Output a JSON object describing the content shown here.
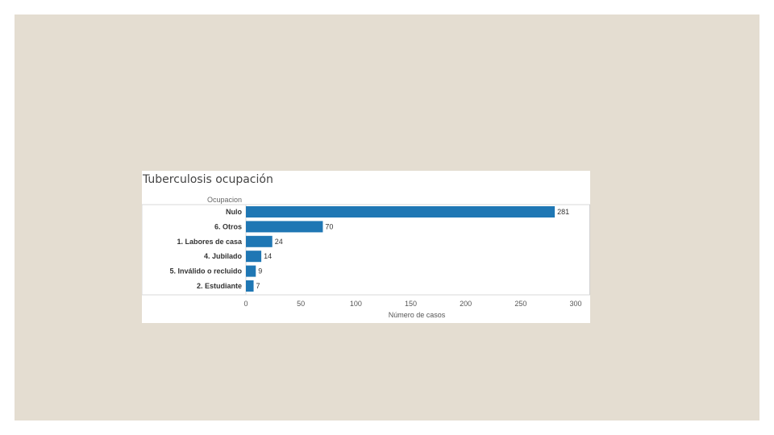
{
  "chart_data": {
    "type": "bar",
    "orientation": "horizontal",
    "title": "Tuberculosis ocupación",
    "row_header": "Ocupacion",
    "xlabel": "Número de casos",
    "ylabel": "",
    "categories": [
      "Nulo",
      "6. Otros",
      "1. Labores de casa",
      "4. Jubilado",
      "5. Inválido o recluido",
      "2. Estudiante"
    ],
    "values": [
      281,
      70,
      24,
      14,
      9,
      7
    ],
    "value_labels": [
      "281",
      "70",
      "24",
      "14",
      "9",
      "7"
    ],
    "xlim": [
      0,
      300
    ],
    "xticks": [
      0,
      50,
      100,
      150,
      200,
      250,
      300
    ],
    "xtick_labels": [
      "0",
      "50",
      "100",
      "150",
      "200",
      "250",
      "300"
    ],
    "bar_color": "#1f77b4",
    "grid": false,
    "legend": "none"
  }
}
